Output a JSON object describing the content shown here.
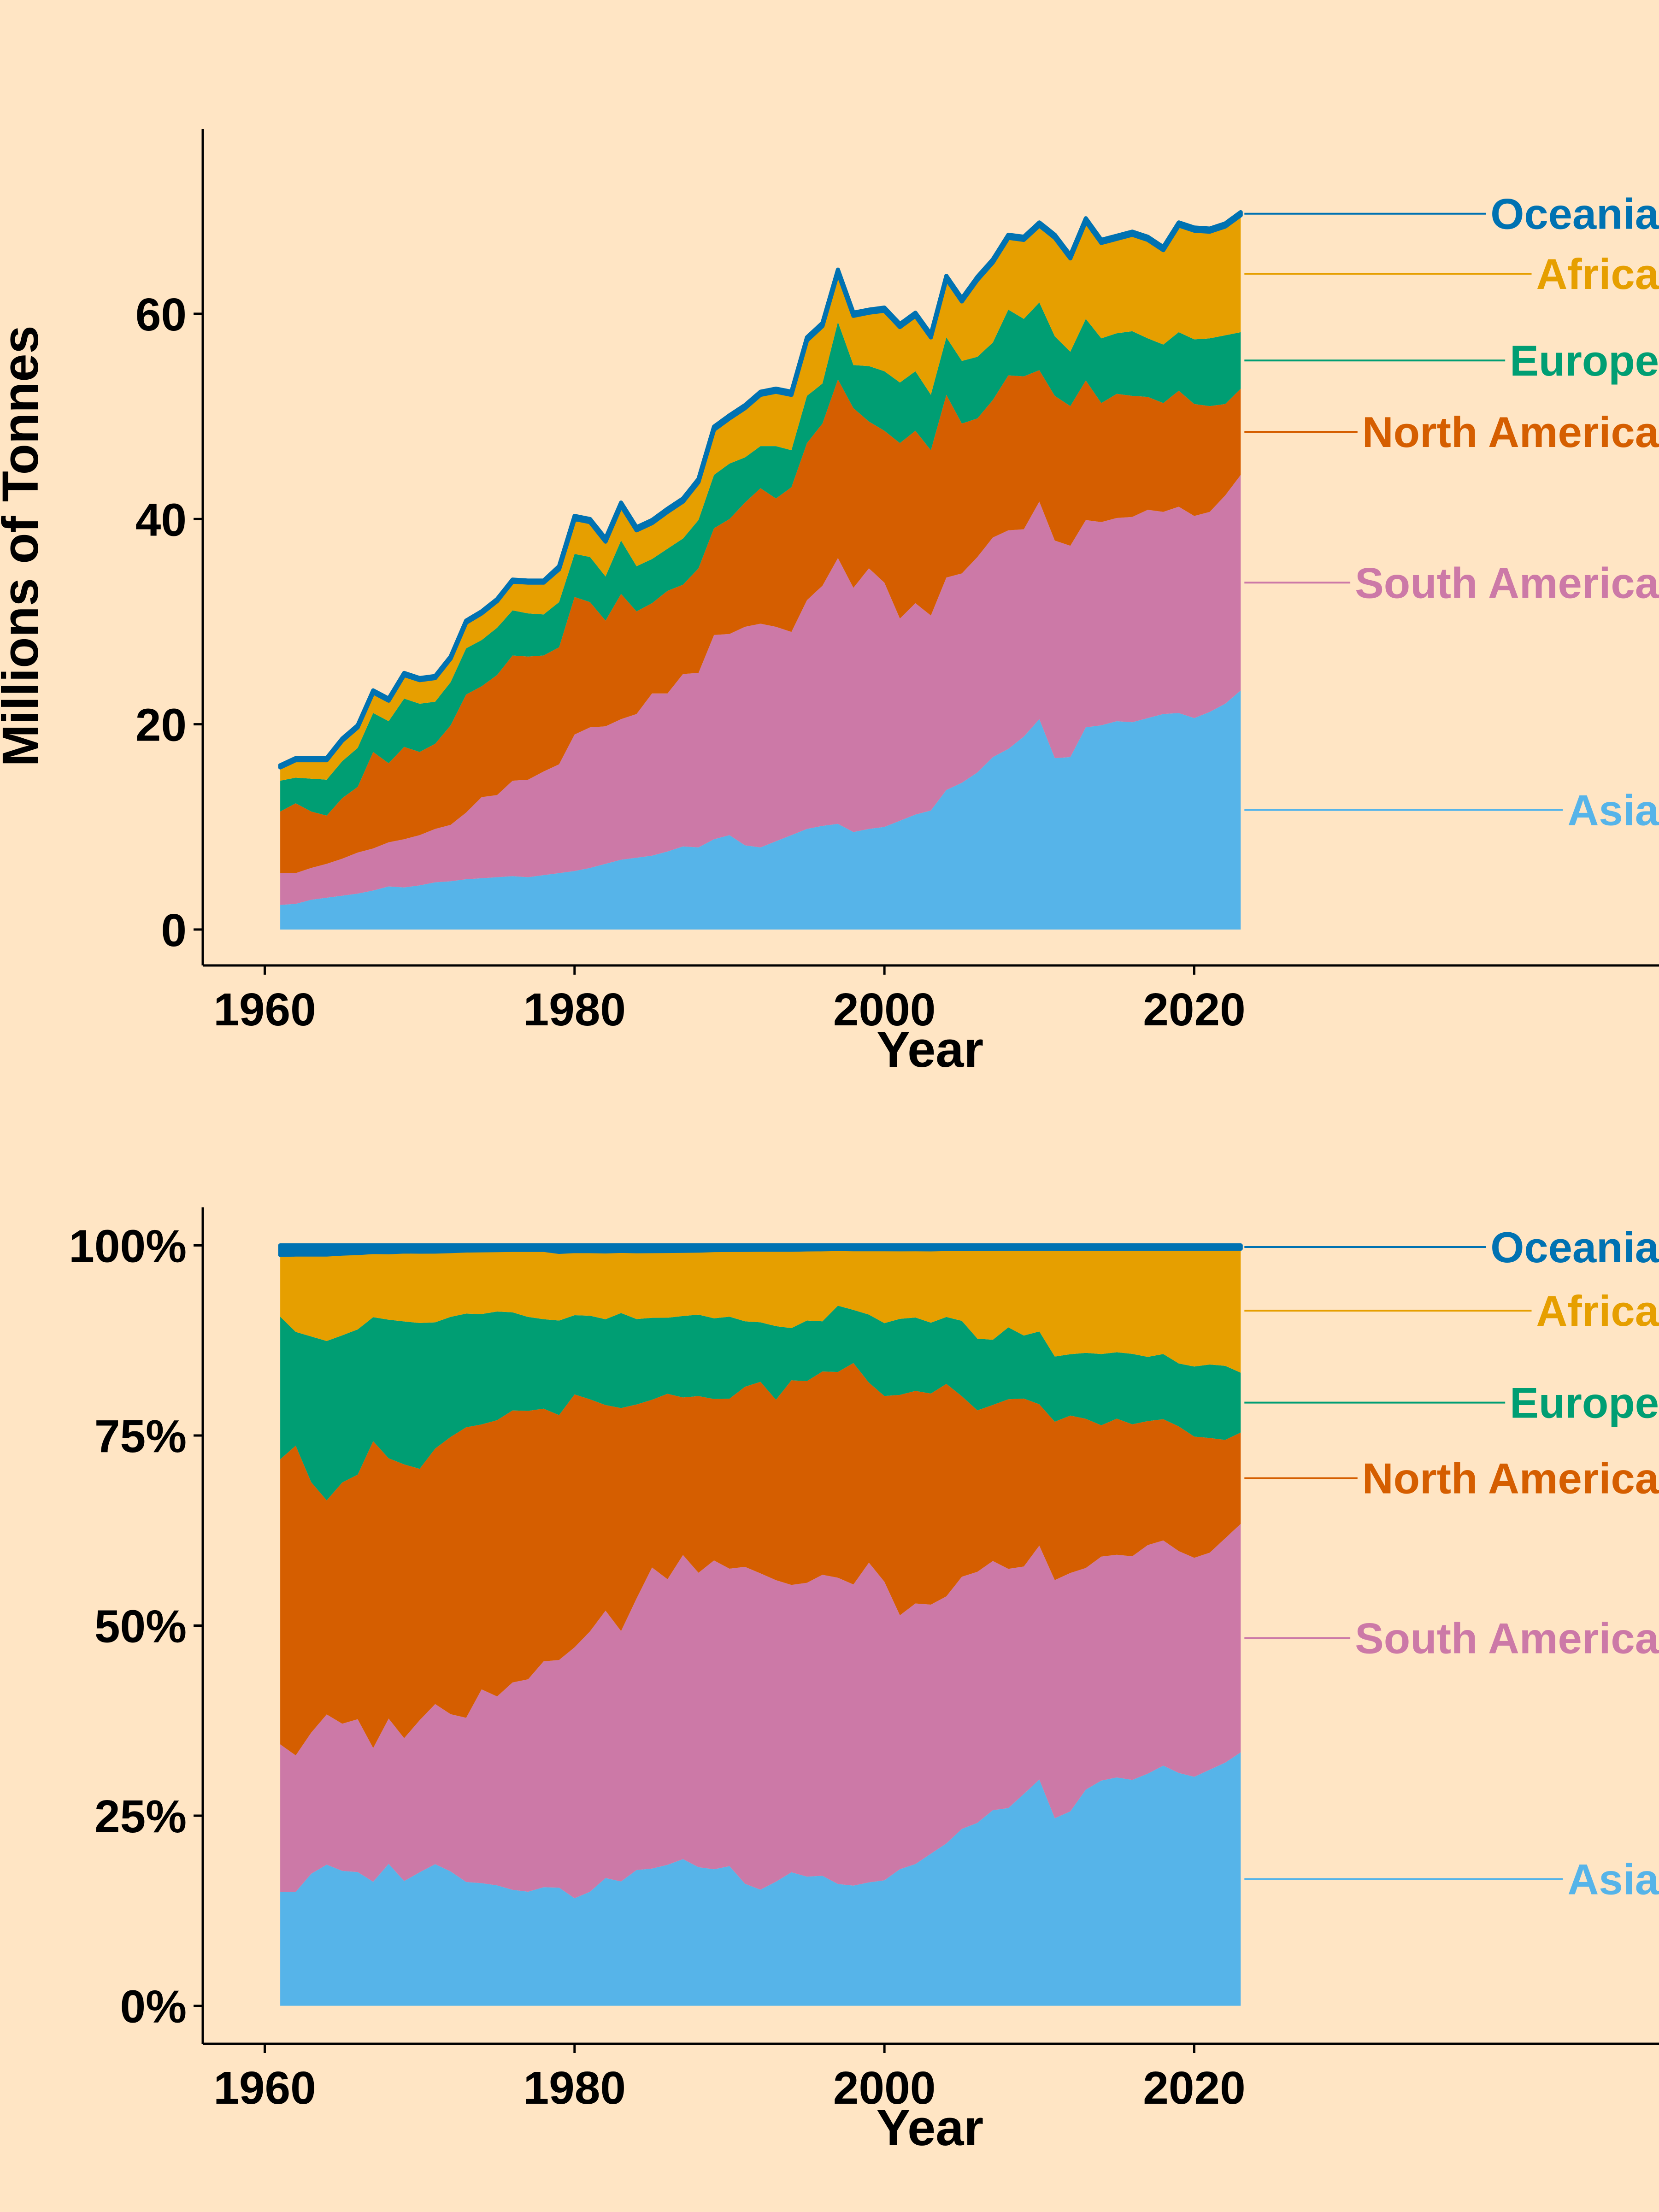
{
  "colors": {
    "background": "#FFE5C4",
    "Asia": "#56B4E9",
    "South America": "#CC79A7",
    "North America": "#D55E00",
    "Europe": "#009E73",
    "Africa": "#E69F00",
    "Oceania": "#0072B2"
  },
  "chart_data": [
    {
      "type": "area",
      "stacked": true,
      "title": "",
      "xlabel": "Year",
      "ylabel": "Millions of Tonnes",
      "xlim": [
        1956,
        2050
      ],
      "ylim": [
        -3.5,
        78
      ],
      "x_ticks": [
        1960,
        1980,
        2000,
        2020
      ],
      "x_tick_labels": [
        "1960",
        "1980",
        "2000",
        "2020"
      ],
      "y_ticks": [
        0,
        20,
        40,
        60
      ],
      "y_tick_labels": [
        "0",
        "20",
        "40",
        "60"
      ],
      "grid": false,
      "legend": "direct labels at right end of each series",
      "years": [
        1961,
        1962,
        1963,
        1964,
        1965,
        1966,
        1967,
        1968,
        1969,
        1970,
        1971,
        1972,
        1973,
        1974,
        1975,
        1976,
        1977,
        1978,
        1979,
        1980,
        1981,
        1982,
        1983,
        1984,
        1985,
        1986,
        1987,
        1988,
        1989,
        1990,
        1991,
        1992,
        1993,
        1994,
        1995,
        1996,
        1997,
        1998,
        1999,
        2000,
        2001,
        2002,
        2003,
        2004,
        2005,
        2006,
        2007,
        2008,
        2009,
        2010,
        2011,
        2012,
        2013,
        2014,
        2015,
        2016,
        2017,
        2018,
        2019,
        2020,
        2021,
        2022,
        2023
      ],
      "series": [
        {
          "name": "Asia",
          "values": [
            2.4,
            2.5,
            2.9,
            3.1,
            3.3,
            3.5,
            3.8,
            4.2,
            4.1,
            4.3,
            4.6,
            4.7,
            4.9,
            5.0,
            5.1,
            5.2,
            5.1,
            5.3,
            5.5,
            5.7,
            6.0,
            6.4,
            6.8,
            7.0,
            7.2,
            7.6,
            8.1,
            8.0,
            8.8,
            9.2,
            8.2,
            8.0,
            8.6,
            9.2,
            9.8,
            10.1,
            10.3,
            9.5,
            9.8,
            10.0,
            10.6,
            11.2,
            11.6,
            13.6,
            14.3,
            15.3,
            16.8,
            17.6,
            18.8,
            20.5,
            16.7,
            16.8,
            19.7,
            19.9,
            20.3,
            20.2,
            20.6,
            21.0,
            21.1,
            20.6,
            21.2,
            22.0,
            23.3
          ]
        },
        {
          "name": "South America",
          "values": [
            3.1,
            3.0,
            3.1,
            3.3,
            3.6,
            4.0,
            4.1,
            4.3,
            4.7,
            4.9,
            5.2,
            5.5,
            6.5,
            7.9,
            8.0,
            9.3,
            9.5,
            10.1,
            10.6,
            13.3,
            13.7,
            13.4,
            13.7,
            14.0,
            15.8,
            15.4,
            16.8,
            17.0,
            19.9,
            19.6,
            21.3,
            21.8,
            20.9,
            19.8,
            22.3,
            23.4,
            25.9,
            23.8,
            25.4,
            23.8,
            19.7,
            20.6,
            19.0,
            20.7,
            20.4,
            21.0,
            21.4,
            21.3,
            20.2,
            21.2,
            21.2,
            20.6,
            20.2,
            19.8,
            19.8,
            20.0,
            20.3,
            19.7,
            20.1,
            19.7,
            19.5,
            20.3,
            21.0
          ]
        },
        {
          "name": "North America",
          "values": [
            6.0,
            6.8,
            5.5,
            4.7,
            5.9,
            6.4,
            9.4,
            7.7,
            9.0,
            8.1,
            8.3,
            9.7,
            11.5,
            10.8,
            11.7,
            12.2,
            12.0,
            11.3,
            11.4,
            13.4,
            12.2,
            10.3,
            12.2,
            10.0,
            8.8,
            10.0,
            8.7,
            10.2,
            10.4,
            11.2,
            12.1,
            13.2,
            12.5,
            14.1,
            15.3,
            15.8,
            17.4,
            17.5,
            14.3,
            14.8,
            17.1,
            16.8,
            16.1,
            17.8,
            14.6,
            13.5,
            13.4,
            15.1,
            14.9,
            12.8,
            14.1,
            13.6,
            13.6,
            11.6,
            12.1,
            11.8,
            11.0,
            10.6,
            11.3,
            10.9,
            10.3,
            8.9,
            8.4
          ]
        },
        {
          "name": "Europe",
          "values": [
            3.0,
            2.5,
            3.2,
            3.5,
            3.6,
            3.8,
            3.8,
            4.1,
            4.7,
            4.7,
            4.1,
            4.2,
            4.5,
            4.5,
            4.6,
            4.4,
            4.2,
            4.0,
            4.4,
            4.2,
            4.4,
            4.3,
            5.2,
            4.4,
            4.3,
            4.1,
            4.5,
            4.7,
            5.2,
            5.4,
            4.4,
            4.1,
            5.1,
            3.6,
            4.6,
            3.9,
            5.6,
            4.2,
            5.4,
            5.8,
            5.9,
            5.8,
            5.4,
            5.6,
            6.1,
            6.0,
            5.6,
            6.4,
            5.6,
            6.6,
            5.8,
            5.3,
            6.0,
            6.3,
            5.9,
            6.3,
            5.7,
            5.7,
            5.7,
            6.3,
            6.6,
            6.7,
            5.5
          ]
        },
        {
          "name": "Africa",
          "values": [
            1.3,
            1.7,
            1.8,
            1.9,
            2.0,
            2.0,
            2.0,
            2.0,
            2.3,
            2.3,
            2.3,
            2.3,
            2.5,
            2.6,
            2.6,
            2.8,
            3.0,
            3.1,
            3.2,
            3.4,
            3.4,
            3.4,
            3.4,
            3.5,
            3.5,
            3.6,
            3.6,
            3.7,
            4.4,
            4.4,
            4.8,
            5.0,
            5.3,
            5.4,
            5.4,
            5.6,
            4.8,
            4.8,
            5.2,
            5.9,
            5.4,
            5.4,
            5.6,
            5.7,
            5.8,
            7.5,
            7.8,
            7.0,
            7.7,
            7.5,
            9.6,
            9.1,
            9.5,
            9.3,
            9.2,
            9.4,
            9.6,
            9.2,
            10.4,
            10.6,
            10.4,
            10.6,
            11.4
          ]
        },
        {
          "name": "Oceania",
          "values": [
            0.2,
            0.2,
            0.2,
            0.2,
            0.2,
            0.2,
            0.2,
            0.2,
            0.2,
            0.2,
            0.2,
            0.2,
            0.2,
            0.2,
            0.2,
            0.2,
            0.2,
            0.2,
            0.3,
            0.3,
            0.3,
            0.3,
            0.3,
            0.3,
            0.3,
            0.3,
            0.3,
            0.3,
            0.3,
            0.3,
            0.3,
            0.3,
            0.3,
            0.3,
            0.3,
            0.3,
            0.3,
            0.3,
            0.3,
            0.3,
            0.3,
            0.3,
            0.3,
            0.3,
            0.3,
            0.3,
            0.3,
            0.3,
            0.3,
            0.3,
            0.3,
            0.3,
            0.3,
            0.3,
            0.3,
            0.3,
            0.3,
            0.3,
            0.3,
            0.3,
            0.3,
            0.3,
            0.3
          ]
        }
      ]
    },
    {
      "type": "area",
      "stacked": true,
      "normalized": true,
      "title": "",
      "xlabel": "Year",
      "ylabel": "",
      "xlim": [
        1956,
        2050
      ],
      "ylim": [
        -0.05,
        1.05
      ],
      "x_ticks": [
        1960,
        1980,
        2000,
        2020
      ],
      "x_tick_labels": [
        "1960",
        "1980",
        "2000",
        "2020"
      ],
      "y_ticks": [
        0,
        0.25,
        0.5,
        0.75,
        1.0
      ],
      "y_tick_labels": [
        "0%",
        "25%",
        "50%",
        "75%",
        "100%"
      ],
      "grid": false,
      "legend": "direct labels at right end of each series",
      "years": [
        1961,
        1962,
        1963,
        1964,
        1965,
        1966,
        1967,
        1968,
        1969,
        1970,
        1971,
        1972,
        1973,
        1974,
        1975,
        1976,
        1977,
        1978,
        1979,
        1980,
        1981,
        1982,
        1983,
        1984,
        1985,
        1986,
        1987,
        1988,
        1989,
        1990,
        1991,
        1992,
        1993,
        1994,
        1995,
        1996,
        1997,
        1998,
        1999,
        2000,
        2001,
        2002,
        2003,
        2004,
        2005,
        2006,
        2007,
        2008,
        2009,
        2010,
        2011,
        2012,
        2013,
        2014,
        2015,
        2016,
        2017,
        2018,
        2019,
        2020,
        2021,
        2022,
        2023
      ],
      "series_source": "shares of the stacked totals from chart 1 (same series, same colors)",
      "series_names": [
        "Asia",
        "South America",
        "North America",
        "Europe",
        "Africa",
        "Oceania"
      ]
    }
  ],
  "labels": [
    "Oceania",
    "Africa",
    "Europe",
    "North America",
    "South America",
    "Asia"
  ]
}
